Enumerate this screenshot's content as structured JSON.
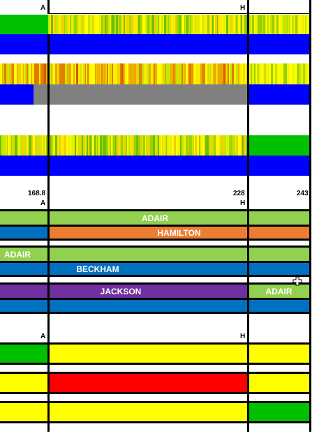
{
  "section1": {
    "markers": {
      "a": "A",
      "h": "H"
    }
  },
  "section2": {
    "markers": {
      "start_value": "168.8",
      "start_letter": "A",
      "mid_value": "228",
      "mid_letter": "H",
      "end_value": "243"
    },
    "rows": [
      {
        "label": "ADAIR"
      },
      {
        "label": "HAMILTON"
      },
      {
        "label": "ADAIR"
      },
      {
        "label": "BECKHAM"
      },
      {
        "label_left": "JACKSON",
        "label_right": "ADAIR"
      }
    ]
  },
  "section3": {
    "markers": {
      "a": "A",
      "h": "H"
    }
  },
  "colors": {
    "green": "#00c000",
    "blue": "#0000ff",
    "gray": "#808080",
    "light_green": "#92d050",
    "steel_blue": "#0070c0",
    "orange": "#ed7d31",
    "purple": "#7030a0",
    "yellow": "#ffff00",
    "red": "#ff0000"
  }
}
